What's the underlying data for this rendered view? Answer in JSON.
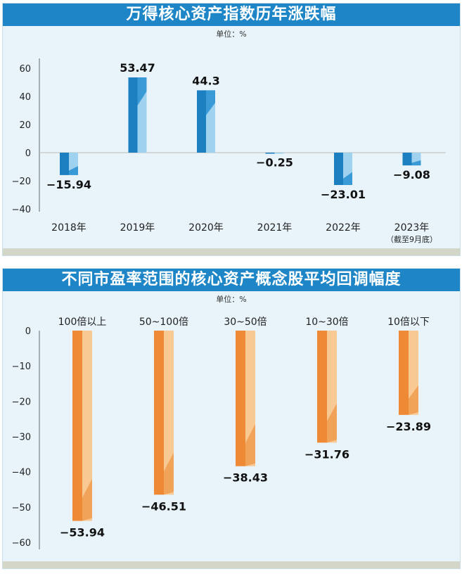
{
  "chart_data": [
    {
      "type": "bar",
      "title": "万得核心资产指数历年涨跌幅",
      "unit_label": "单位：%",
      "categories": [
        "2018年",
        "2019年",
        "2020年",
        "2021年",
        "2022年",
        "2023年"
      ],
      "category_notes": [
        "",
        "",
        "",
        "",
        "",
        "（截至9月底）"
      ],
      "values": [
        -15.94,
        53.47,
        44.3,
        -0.25,
        -23.01,
        -9.08
      ],
      "value_labels": [
        "−15.94",
        "53.47",
        "44.3",
        "−0.25",
        "−23.01",
        "−9.08"
      ],
      "y_ticks": [
        60,
        40,
        20,
        0,
        -20,
        -40
      ],
      "y_tick_labels": [
        "60",
        "40",
        "20",
        "0",
        "−20",
        "−40"
      ],
      "ylim": [
        -45,
        65
      ],
      "colors": {
        "dark": "#1b7fc0",
        "light": "#9fd2ef",
        "header": "#1e86c6"
      }
    },
    {
      "type": "bar",
      "title": "不同市盈率范围的核心资产概念股平均回调幅度",
      "unit_label": "单位：%",
      "categories": [
        "100倍以上",
        "50~100倍",
        "30~50倍",
        "10~30倍",
        "10倍以下"
      ],
      "values": [
        -53.94,
        -46.51,
        -38.43,
        -31.76,
        -23.89
      ],
      "value_labels": [
        "−53.94",
        "−46.51",
        "−38.43",
        "−31.76",
        "−23.89"
      ],
      "y_ticks": [
        0,
        -10,
        -20,
        -30,
        -40,
        -50,
        -60
      ],
      "y_tick_labels": [
        "0",
        "−10",
        "−20",
        "−30",
        "−40",
        "−50",
        "−60"
      ],
      "ylim": [
        -65,
        0
      ],
      "colors": {
        "dark": "#ee8a36",
        "light": "#f9c993",
        "header": "#1e86c6"
      }
    }
  ]
}
